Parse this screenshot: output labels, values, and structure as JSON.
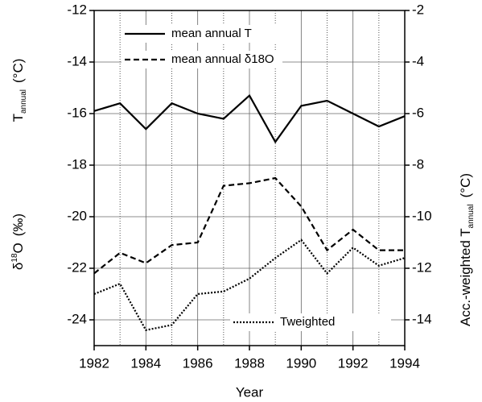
{
  "chart_data": {
    "type": "line",
    "x_label": "Year",
    "y_label_upper": {
      "base": "T",
      "sub": "annual",
      "unit": "(°C)"
    },
    "y_label_lower": {
      "base": "δ",
      "sup": "18",
      "rest": "O",
      "unit": "(‰)"
    },
    "y2_label": {
      "base": "Acc.-weighted T",
      "sub": "annual",
      "unit": "(°C)"
    },
    "x": [
      1982,
      1983,
      1984,
      1985,
      1986,
      1987,
      1988,
      1989,
      1990,
      1991,
      1992,
      1993,
      1994
    ],
    "xlim": [
      1982,
      1994
    ],
    "xticks": [
      1982,
      1984,
      1986,
      1988,
      1990,
      1992,
      1994
    ],
    "ylim": [
      -25,
      -12
    ],
    "yticks": [
      -12,
      -14,
      -16,
      -18,
      -20,
      -22,
      -24
    ],
    "y2lim": [
      -15,
      -2
    ],
    "y2ticks": [
      -2,
      -4,
      -6,
      -8,
      -10,
      -12,
      -14
    ],
    "grid": true,
    "series": [
      {
        "name": "mean annual T",
        "color": "#000000",
        "dash": "solid",
        "values": [
          -15.9,
          -15.6,
          -16.6,
          -15.6,
          -16.0,
          -16.2,
          -15.3,
          -17.1,
          -15.7,
          -15.5,
          -16.0,
          -16.5,
          -16.1
        ]
      },
      {
        "name": "mean annual δ18O",
        "color": "#000000",
        "dash": "dashed",
        "values": [
          -22.2,
          -21.4,
          -21.8,
          -21.1,
          -21.0,
          -18.8,
          -18.7,
          -18.5,
          -19.6,
          -21.3,
          -20.5,
          -21.3,
          -21.3
        ]
      },
      {
        "name": "Tweighted",
        "color": "#000000",
        "dash": "dotted",
        "axis": "y2",
        "values": [
          -13.0,
          -12.6,
          -14.4,
          -14.2,
          -13.0,
          -12.9,
          -12.4,
          -11.6,
          -10.9,
          -12.2,
          -11.2,
          -11.9,
          -11.6
        ]
      }
    ]
  }
}
